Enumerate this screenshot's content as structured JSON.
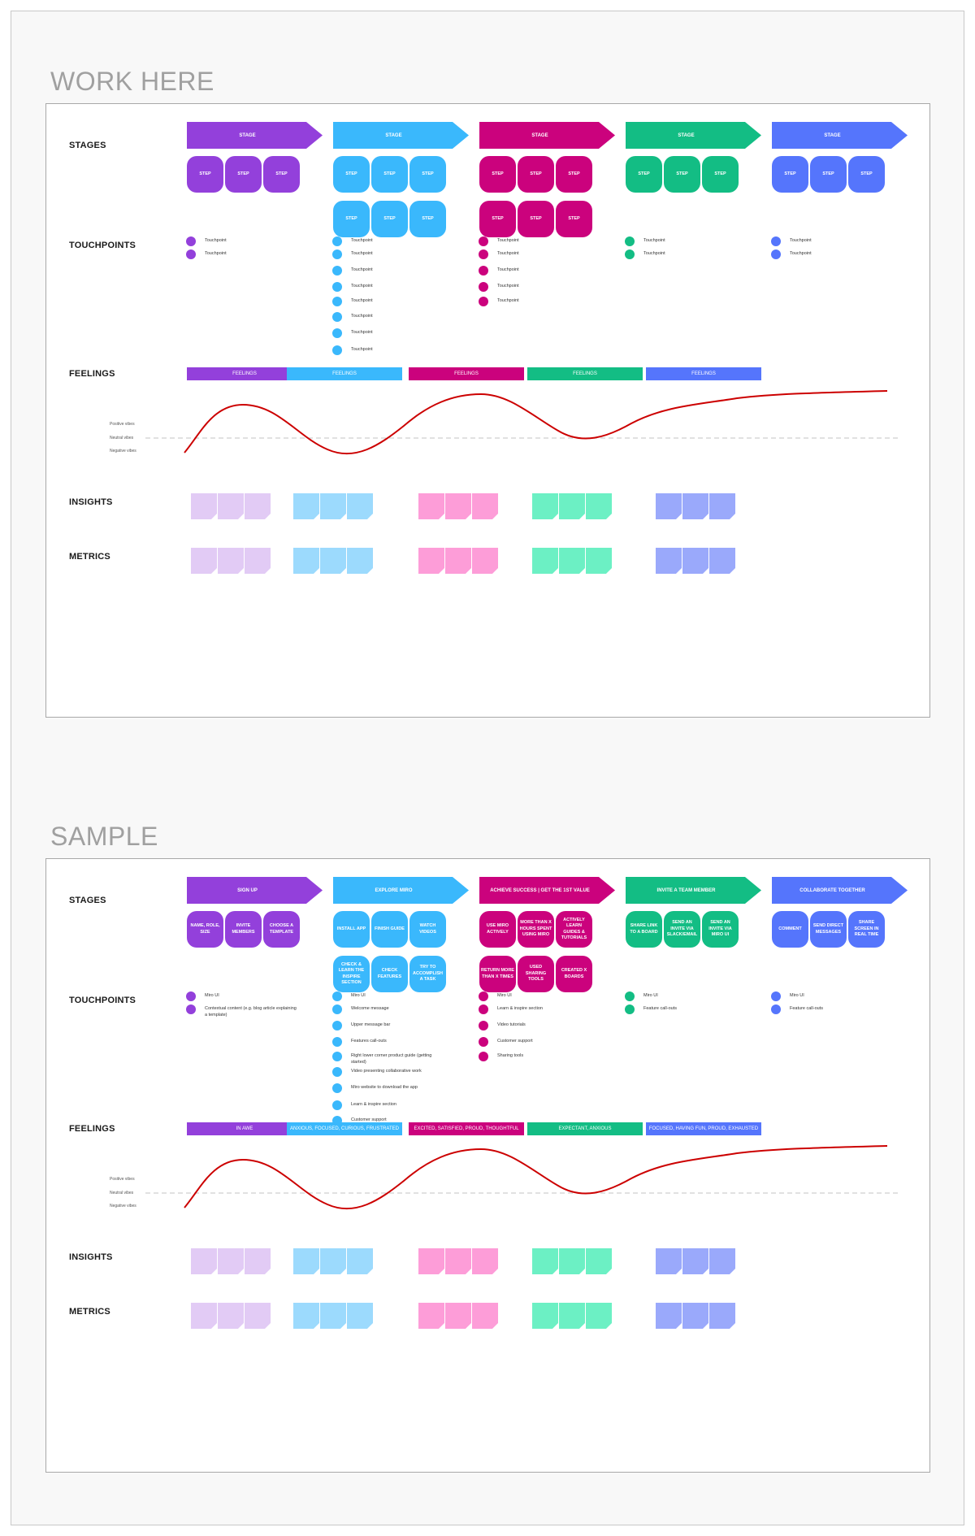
{
  "colors": {
    "purple": "#9340db",
    "blue": "#3ab8fc",
    "magenta": "#cb027d",
    "green": "#13bd84",
    "indigo": "#5575fc",
    "purple_light": "#e2cbf5",
    "blue_light": "#9cdafd",
    "magenta_light": "#fd9dd8",
    "green_light": "#6cf0c4",
    "indigo_light": "#9aa9fb",
    "curve": "#cc0000"
  },
  "row_labels": {
    "stages": "STAGES",
    "touchpoints": "TOUCHPOINTS",
    "feelings": "FEELINGS",
    "insights": "INSIGHTS",
    "metrics": "METRICS"
  },
  "vibes": {
    "positive": "Positive vibes",
    "neutral": "Neutral vibes",
    "negative": "Negative vibes"
  },
  "work": {
    "title": "WORK HERE",
    "stages": [
      {
        "label": "STAGE",
        "steps": [
          "STEP",
          "STEP",
          "STEP"
        ],
        "touchpoints": [
          "Touchpoint",
          "Touchpoint"
        ],
        "feeling": "FEELINGS"
      },
      {
        "label": "STAGE",
        "steps": [
          "STEP",
          "STEP",
          "STEP",
          "STEP",
          "STEP",
          "STEP"
        ],
        "touchpoints": [
          "Touchpoint",
          "Touchpoint",
          "Touchpoint",
          "Touchpoint",
          "Touchpoint",
          "Touchpoint",
          "Touchpoint",
          "Touchpoint"
        ],
        "feeling": "FEELINGS"
      },
      {
        "label": "STAGE",
        "steps": [
          "STEP",
          "STEP",
          "STEP",
          "STEP",
          "STEP",
          "STEP"
        ],
        "touchpoints": [
          "Touchpoint",
          "Touchpoint",
          "Touchpoint",
          "Touchpoint",
          "Touchpoint"
        ],
        "feeling": "FEELINGS"
      },
      {
        "label": "STAGE",
        "steps": [
          "STEP",
          "STEP",
          "STEP"
        ],
        "touchpoints": [
          "Touchpoint",
          "Touchpoint"
        ],
        "feeling": "FEELINGS"
      },
      {
        "label": "STAGE",
        "steps": [
          "STEP",
          "STEP",
          "STEP"
        ],
        "touchpoints": [
          "Touchpoint",
          "Touchpoint"
        ],
        "feeling": "FEELINGS"
      }
    ]
  },
  "sample": {
    "title": "SAMPLE",
    "stages": [
      {
        "label": "SIGN UP",
        "steps": [
          "NAME, ROLE, SIZE",
          "INVITE MEMBERS",
          "CHOOSE A TEMPLATE"
        ],
        "touchpoints": [
          "Miro UI",
          "Contextual content (e.g. blog article explaining a template)"
        ],
        "feeling": "IN AWE"
      },
      {
        "label": "EXPLORE MIRO",
        "steps": [
          "INSTALL APP",
          "FINISH GUIDE",
          "WATCH VIDEOS",
          "CHECK & LEARN THE INSPIRE SECTION",
          "CHECK FEATURES",
          "TRY TO ACCOMPLISH A TASK"
        ],
        "touchpoints": [
          "Miro UI",
          "Welcome message",
          "Upper message bar",
          "Features call-outs",
          "Right lower corner product guide (getting started)",
          "Video presenting collaborative work",
          "Miro website to download the app",
          "Learn & inspire section",
          "Customer support"
        ],
        "feeling": "ANXIOUS, FOCUSED, CURIOUS, FRUSTRATED"
      },
      {
        "label": "ACHIEVE SUCCESS | GET THE 1ST VALUE",
        "steps": [
          "USE MIRO ACTIVELY",
          "MORE THAN X HOURS SPENT USING MIRO",
          "ACTIVELY LEARN GUIDES & TUTORIALS",
          "RETURN MORE THAN X TIMES",
          "USED SHARING TOOLS",
          "CREATED X BOARDS"
        ],
        "touchpoints": [
          "Miro UI",
          "Learn & inspire section",
          "Video tutorials",
          "Customer support",
          "Sharing tools"
        ],
        "feeling": "EXCITED, SATISFIED, PROUD, THOUGHTFUL"
      },
      {
        "label": "INVITE A TEAM MEMBER",
        "steps": [
          "SHARE LINK TO A BOARD",
          "SEND AN INVITE VIA SLACK/EMAIL",
          "SEND AN INVITE VIA MIRO UI"
        ],
        "touchpoints": [
          "Miro UI",
          "Feature call-outs"
        ],
        "feeling": "EXPECTANT, ANXIOUS"
      },
      {
        "label": "COLLABORATE TOGETHER",
        "steps": [
          "COMMENT",
          "SEND DIRECT MESSAGES",
          "SHARE SCREEN IN REAL TIME"
        ],
        "touchpoints": [
          "Miro UI",
          "Feature call-outs"
        ],
        "feeling": "FOCUSED, HAVING FUN, PROUD, EXHAUSTED"
      }
    ]
  }
}
